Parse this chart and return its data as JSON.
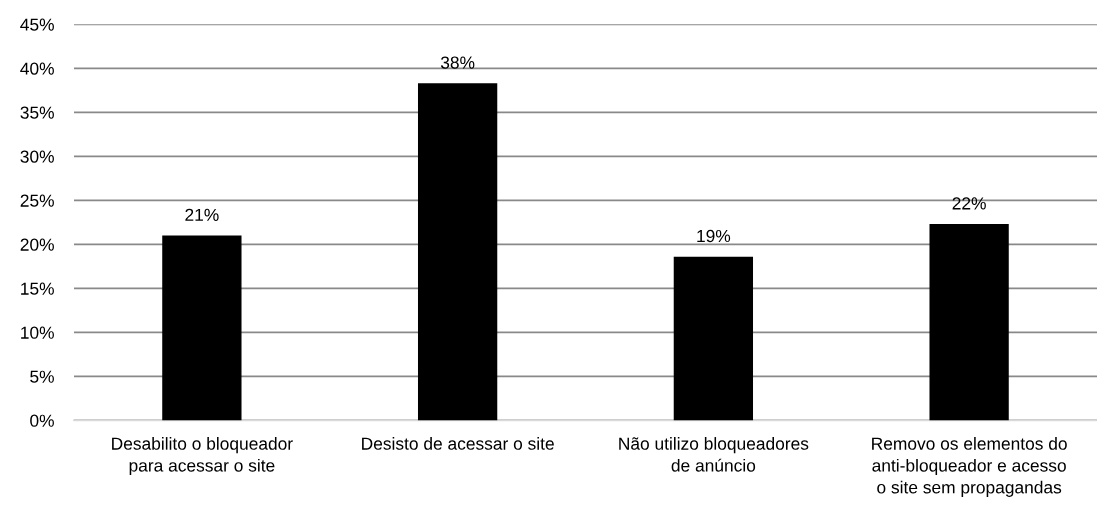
{
  "chart_data": {
    "type": "bar",
    "categories": [
      "Desabilito o bloqueador\npara acessar o site",
      "Desisto de acessar o site",
      "Não utilizo bloqueadores\nde anúncio",
      "Removo os elementos do\nanti-bloqueador e acesso\no site sem propagandas"
    ],
    "values": [
      21.0,
      38.3,
      18.6,
      22.3
    ],
    "value_labels": [
      "21%",
      "38%",
      "19%",
      "22%"
    ],
    "color": "#000000",
    "ylim": [
      0,
      45
    ],
    "yticks": [
      {
        "value": 0,
        "label": "0%"
      },
      {
        "value": 5,
        "label": "5%"
      },
      {
        "value": 10,
        "label": "10%"
      },
      {
        "value": 15,
        "label": "15%"
      },
      {
        "value": 20,
        "label": "20%"
      },
      {
        "value": 25,
        "label": "25%"
      },
      {
        "value": 30,
        "label": "30%"
      },
      {
        "value": 35,
        "label": "35%"
      },
      {
        "value": 40,
        "label": "40%"
      },
      {
        "value": 45,
        "label": "45%"
      }
    ],
    "grid": "y"
  }
}
